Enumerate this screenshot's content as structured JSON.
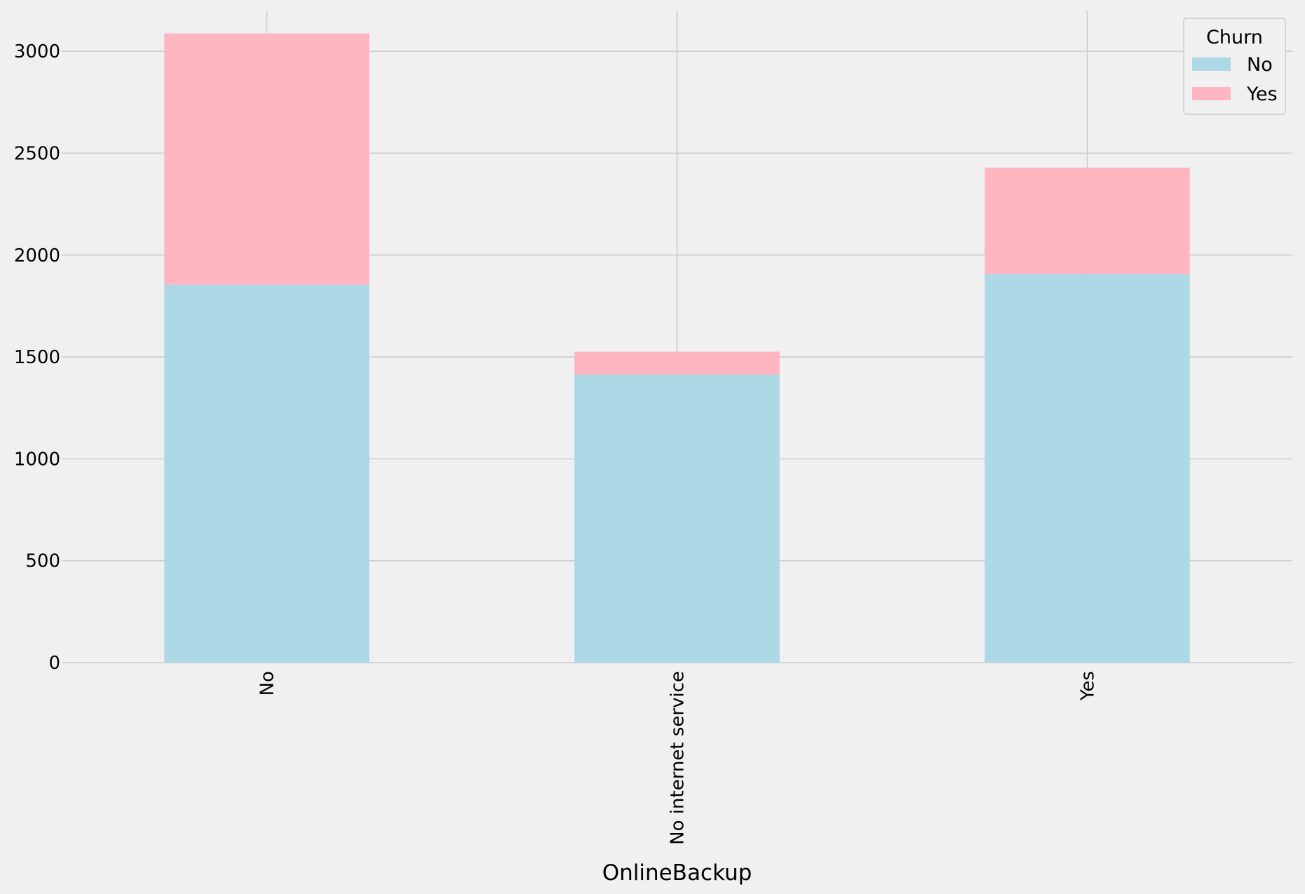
{
  "chart_data": {
    "type": "bar",
    "stacked": true,
    "title": "",
    "xlabel": "OnlineBackup",
    "ylabel": "",
    "categories": [
      "No",
      "No internet service",
      "Yes"
    ],
    "series": [
      {
        "name": "No",
        "values": [
          1855,
          1413,
          1906
        ],
        "color": "#add8e6"
      },
      {
        "name": "Yes",
        "values": [
          1233,
          113,
          523
        ],
        "color": "#ffb6c1"
      }
    ],
    "ylim": [
      0,
      3200
    ],
    "yticks": [
      0,
      500,
      1000,
      1500,
      2000,
      2500,
      3000
    ],
    "grid": true,
    "x_tick_rotation": "vertical",
    "legend": {
      "title": "Churn",
      "placement": "top-right"
    },
    "background": "#f0f0f0",
    "grid_color": "#cbcbcb"
  }
}
